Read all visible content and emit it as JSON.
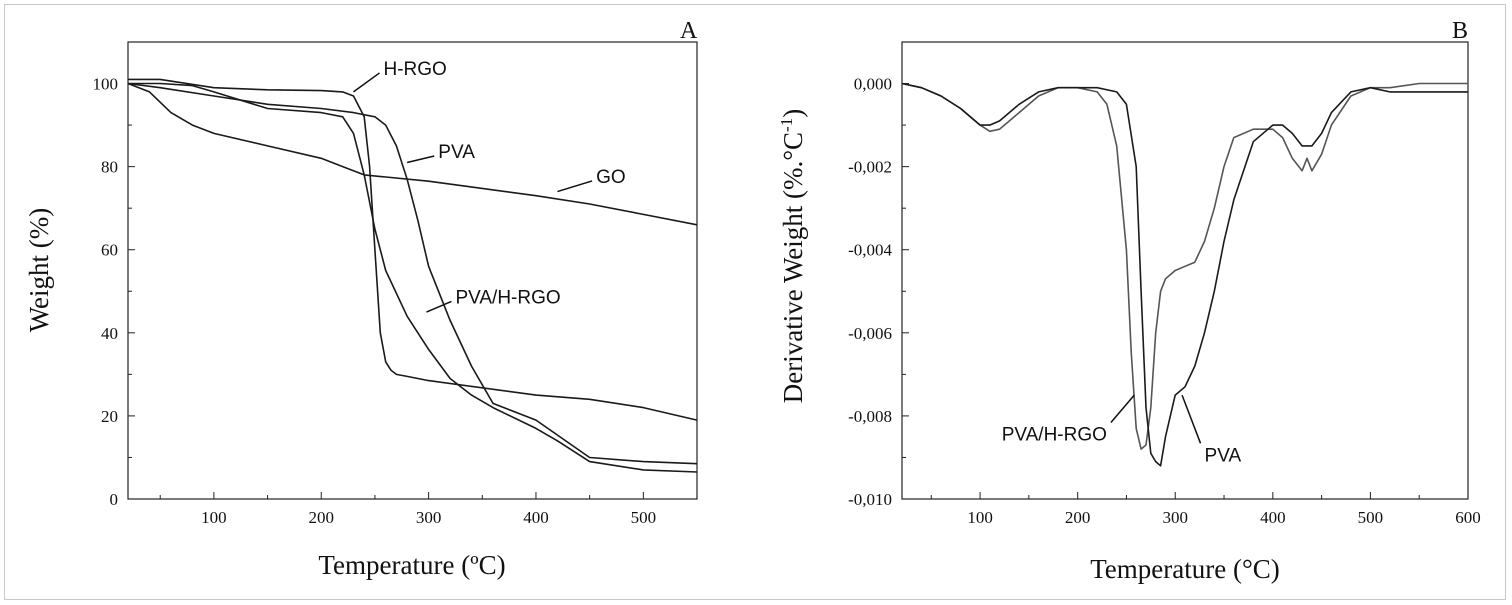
{
  "chart_data": [
    {
      "type": "line",
      "panel_label": "A",
      "xlabel": "Temperature (ºC)",
      "ylabel": "Weight (%)",
      "xlim": [
        20,
        550
      ],
      "ylim": [
        0,
        110
      ],
      "xticks": [
        100,
        200,
        300,
        400,
        500
      ],
      "yticks": [
        0,
        20,
        40,
        60,
        80,
        100
      ],
      "series": [
        {
          "name": "GO",
          "x": [
            20,
            40,
            60,
            80,
            100,
            150,
            200,
            220,
            240,
            260,
            300,
            400,
            450,
            500,
            550
          ],
          "y": [
            100,
            98,
            93,
            90,
            88,
            85,
            82,
            80,
            78,
            77.5,
            76.5,
            73,
            71,
            68.5,
            66
          ]
        },
        {
          "name": "H-RGO",
          "x": [
            20,
            50,
            100,
            150,
            200,
            220,
            230,
            240,
            245,
            250,
            255,
            260,
            265,
            270,
            280,
            300,
            400,
            450,
            500,
            550
          ],
          "y": [
            101,
            101,
            99,
            98.5,
            98.3,
            98,
            97,
            92,
            80,
            60,
            40,
            33,
            31,
            30,
            29.5,
            28.5,
            25,
            24,
            22,
            19
          ]
        },
        {
          "name": "PVA",
          "x": [
            20,
            50,
            100,
            150,
            200,
            230,
            250,
            260,
            270,
            280,
            290,
            300,
            320,
            340,
            360,
            400,
            450,
            500,
            550
          ],
          "y": [
            100,
            99,
            97,
            95,
            94,
            93,
            92,
            90,
            85,
            77,
            67,
            56,
            43,
            32,
            23,
            19,
            10,
            9,
            8.5
          ]
        },
        {
          "name": "PVA/H-RGO",
          "x": [
            20,
            50,
            80,
            100,
            150,
            200,
            220,
            230,
            240,
            250,
            260,
            280,
            300,
            320,
            340,
            360,
            400,
            420,
            450,
            500,
            550
          ],
          "y": [
            100,
            100,
            99.5,
            98,
            94,
            93,
            92,
            88,
            78,
            65,
            55,
            44,
            36,
            29,
            25,
            22,
            17,
            14,
            9,
            7,
            6.5
          ]
        }
      ],
      "annotations": [
        {
          "text": "H-RGO",
          "x": 230,
          "y": 98,
          "tx": 258,
          "ty": 104
        },
        {
          "text": "PVA",
          "x": 280,
          "y": 81,
          "tx": 309,
          "ty": 84
        },
        {
          "text": "GO",
          "x": 420,
          "y": 74,
          "tx": 456,
          "ty": 78
        },
        {
          "text": "PVA/H-RGO",
          "x": 298,
          "y": 45,
          "tx": 325,
          "ty": 49
        }
      ]
    },
    {
      "type": "line",
      "panel_label": "B",
      "xlabel": "Temperature (°C)",
      "ylabel": "Derivative Weight (%.°C",
      "ylabel_sup": "-1",
      "ylabel_close": ")",
      "xlim": [
        20,
        600
      ],
      "ylim": [
        -0.01,
        0.001
      ],
      "xticks": [
        100,
        200,
        300,
        400,
        500,
        600
      ],
      "yticks": [
        0.0,
        -0.002,
        -0.004,
        -0.006,
        -0.008,
        -0.01
      ],
      "ytick_labels": [
        "0,000",
        "-0,002",
        "-0,004",
        "-0,006",
        "-0,008",
        "-0,010"
      ],
      "series": [
        {
          "name": "PVA/H-RGO",
          "x": [
            20,
            40,
            60,
            80,
            100,
            110,
            120,
            140,
            160,
            180,
            200,
            220,
            230,
            240,
            250,
            255,
            260,
            265,
            270,
            275,
            280,
            285,
            290,
            300,
            310,
            320,
            330,
            340,
            350,
            360,
            380,
            400,
            410,
            420,
            430,
            435,
            440,
            450,
            460,
            480,
            500,
            520,
            550,
            600
          ],
          "y": [
            0,
            -0.0001,
            -0.0003,
            -0.0006,
            -0.001,
            -0.00115,
            -0.0011,
            -0.0007,
            -0.0003,
            -0.0001,
            -0.0001,
            -0.0002,
            -0.0005,
            -0.0015,
            -0.004,
            -0.0065,
            -0.0083,
            -0.0088,
            -0.0087,
            -0.0078,
            -0.006,
            -0.005,
            -0.0047,
            -0.0045,
            -0.0044,
            -0.0043,
            -0.0038,
            -0.003,
            -0.002,
            -0.0013,
            -0.0011,
            -0.0011,
            -0.0013,
            -0.0018,
            -0.0021,
            -0.0018,
            -0.0021,
            -0.0017,
            -0.001,
            -0.0003,
            -0.0001,
            -0.0001,
            0,
            0
          ]
        },
        {
          "name": "PVA",
          "x": [
            20,
            40,
            60,
            80,
            100,
            110,
            120,
            140,
            160,
            180,
            200,
            220,
            240,
            250,
            260,
            265,
            270,
            275,
            280,
            285,
            290,
            300,
            310,
            320,
            330,
            340,
            350,
            360,
            380,
            400,
            410,
            420,
            430,
            440,
            450,
            460,
            480,
            500,
            520,
            550,
            600
          ],
          "y": [
            0,
            -0.0001,
            -0.0003,
            -0.0006,
            -0.001,
            -0.001,
            -0.0009,
            -0.0005,
            -0.0002,
            -0.0001,
            -0.0001,
            -0.0001,
            -0.0002,
            -0.0005,
            -0.002,
            -0.005,
            -0.0078,
            -0.0089,
            -0.0091,
            -0.0092,
            -0.0085,
            -0.0075,
            -0.0073,
            -0.0068,
            -0.006,
            -0.005,
            -0.0038,
            -0.0028,
            -0.0014,
            -0.001,
            -0.001,
            -0.0012,
            -0.0015,
            -0.0015,
            -0.0012,
            -0.0007,
            -0.0002,
            -0.0001,
            -0.0002,
            -0.0002,
            -0.0002
          ]
        }
      ],
      "annotations": [
        {
          "text": "PVA/H-RGO",
          "x": 258,
          "y": -0.0075,
          "tx": 230,
          "ty": -0.0084
        },
        {
          "text": "PVA",
          "x": 307,
          "y": -0.0075,
          "tx": 330,
          "ty": -0.0089
        }
      ]
    }
  ]
}
